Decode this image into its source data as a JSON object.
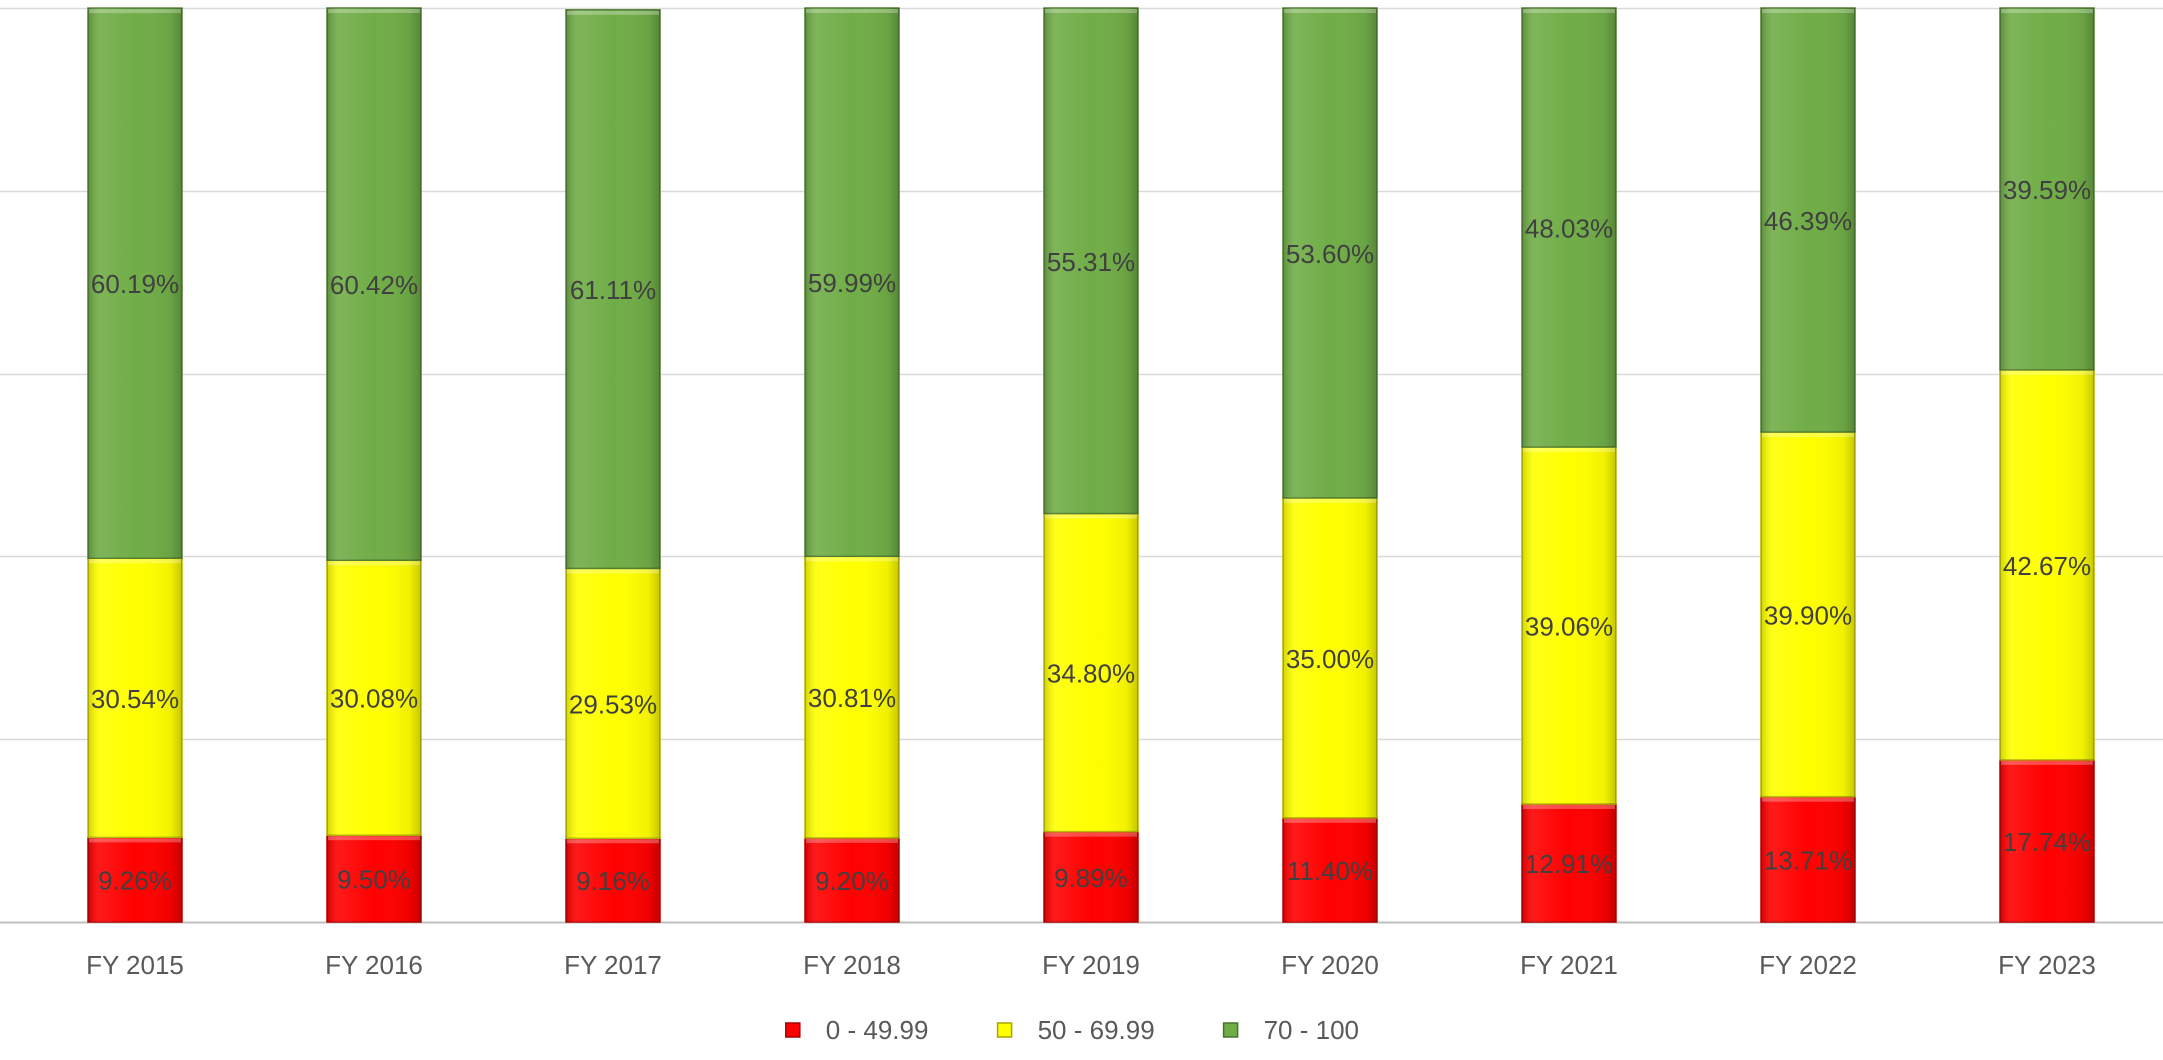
{
  "chart_data": {
    "type": "bar",
    "stacked": true,
    "percent_stacked": true,
    "categories": [
      "FY 2015",
      "FY 2016",
      "FY 2017",
      "FY 2018",
      "FY 2019",
      "FY 2020",
      "FY 2021",
      "FY 2022",
      "FY 2023"
    ],
    "series": [
      {
        "name": "0 - 49.99",
        "color": "#ff0000",
        "values": [
          9.26,
          9.5,
          9.16,
          9.2,
          9.89,
          11.4,
          12.91,
          13.71,
          17.74
        ],
        "labels": [
          "9.26%",
          "9.50%",
          "9.16%",
          "9.20%",
          "9.89%",
          "11.40%",
          "12.91%",
          "13.71%",
          "17.74%"
        ]
      },
      {
        "name": "50 - 69.99",
        "color": "#ffff00",
        "values": [
          30.54,
          30.08,
          29.53,
          30.81,
          34.8,
          35.0,
          39.06,
          39.9,
          42.67
        ],
        "labels": [
          "30.54%",
          "30.08%",
          "29.53%",
          "30.81%",
          "34.80%",
          "35.00%",
          "39.06%",
          "39.90%",
          "42.67%"
        ]
      },
      {
        "name": "70 - 100",
        "color": "#70ad47",
        "values": [
          60.19,
          60.42,
          61.11,
          59.99,
          55.31,
          53.6,
          48.03,
          46.39,
          39.59
        ],
        "labels": [
          "60.19%",
          "60.42%",
          "61.11%",
          "59.99%",
          "55.31%",
          "53.60%",
          "48.03%",
          "46.39%",
          "39.59%"
        ]
      }
    ],
    "ylim": [
      0,
      100
    ],
    "yticks": [
      0,
      20,
      40,
      60,
      80,
      100
    ],
    "grid": true,
    "legend": "bottom-center"
  }
}
